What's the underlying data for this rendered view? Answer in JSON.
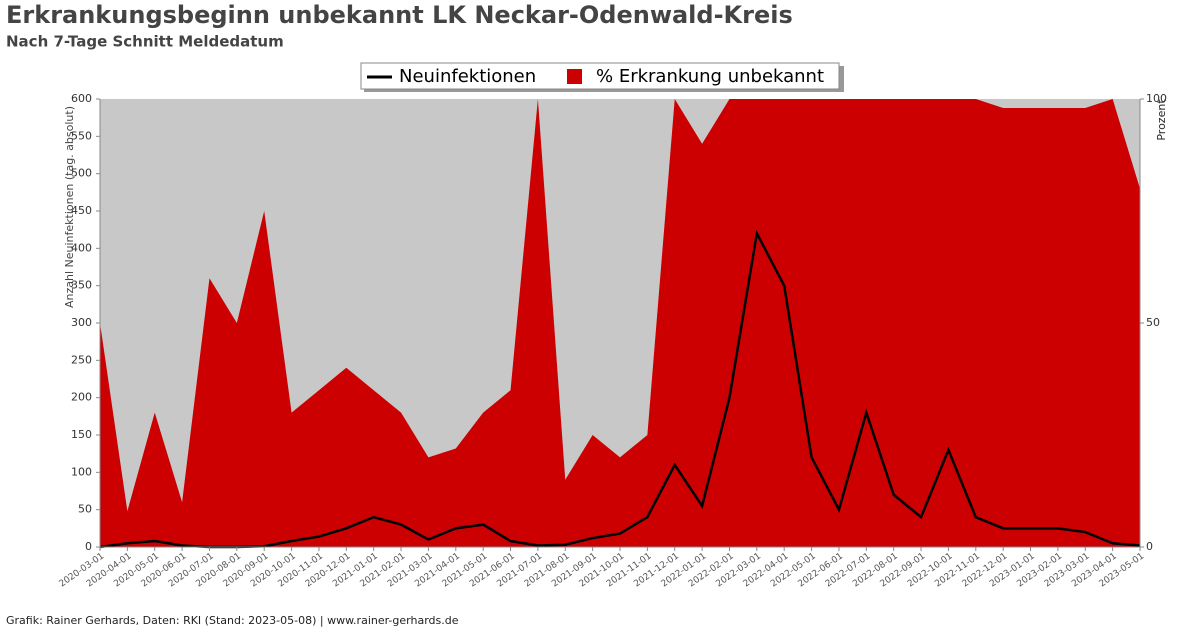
{
  "chart_data": {
    "type": "area-line",
    "title": "Erkrankungsbeginn unbekannt LK Neckar-Odenwald-Kreis",
    "subtitle": "Nach 7-Tage Schnitt Meldedatum",
    "y_label": "Anzahl Neuinfektionen (tag. absolut)",
    "y2_label": "Prozent",
    "footer": "Grafik: Rainer Gerhards, Daten: RKI (Stand: 2023-05-08) | www.rainer-gerhards.de",
    "x": [
      "2020-03-01",
      "2020-04-01",
      "2020-05-01",
      "2020-06-01",
      "2020-07-01",
      "2020-08-01",
      "2020-09-01",
      "2020-10-01",
      "2020-11-01",
      "2020-12-01",
      "2021-01-01",
      "2021-02-01",
      "2021-03-01",
      "2021-04-01",
      "2021-05-01",
      "2021-06-01",
      "2021-07-01",
      "2021-08-01",
      "2021-09-01",
      "2021-10-01",
      "2021-11-01",
      "2021-12-01",
      "2022-01-01",
      "2022-02-01",
      "2022-03-01",
      "2022-04-01",
      "2022-05-01",
      "2022-06-01",
      "2022-07-01",
      "2022-08-01",
      "2022-09-01",
      "2022-10-01",
      "2022-11-01",
      "2022-12-01",
      "2023-01-01",
      "2023-02-01",
      "2023-03-01",
      "2023-04-01",
      "2023-05-01"
    ],
    "series": [
      {
        "name": "% Erkrankung unbekannt",
        "color": "#cc0000",
        "axis": "y2",
        "values": [
          50,
          8,
          30,
          10,
          60,
          50,
          75,
          30,
          35,
          40,
          35,
          30,
          20,
          22,
          30,
          35,
          100,
          15,
          25,
          20,
          25,
          100,
          90,
          100,
          100,
          100,
          100,
          100,
          100,
          100,
          100,
          100,
          100,
          98,
          98,
          98,
          98,
          100,
          80
        ]
      },
      {
        "name": "Neuinfektionen",
        "color": "#000000",
        "values": [
          0,
          5,
          8,
          2,
          0,
          0,
          1,
          8,
          14,
          25,
          40,
          30,
          10,
          25,
          30,
          8,
          2,
          3,
          12,
          18,
          40,
          110,
          55,
          200,
          420,
          350,
          120,
          50,
          180,
          70,
          40,
          130,
          40,
          25,
          25,
          25,
          20,
          5,
          2
        ]
      }
    ],
    "ylim": [
      0,
      600
    ],
    "yticks": [
      0,
      50,
      100,
      150,
      200,
      250,
      300,
      350,
      400,
      450,
      500,
      550,
      600
    ],
    "y2lim": [
      0,
      100
    ],
    "y2ticks": [
      0,
      50,
      100
    ],
    "plot_background": "#c8c8c8"
  }
}
